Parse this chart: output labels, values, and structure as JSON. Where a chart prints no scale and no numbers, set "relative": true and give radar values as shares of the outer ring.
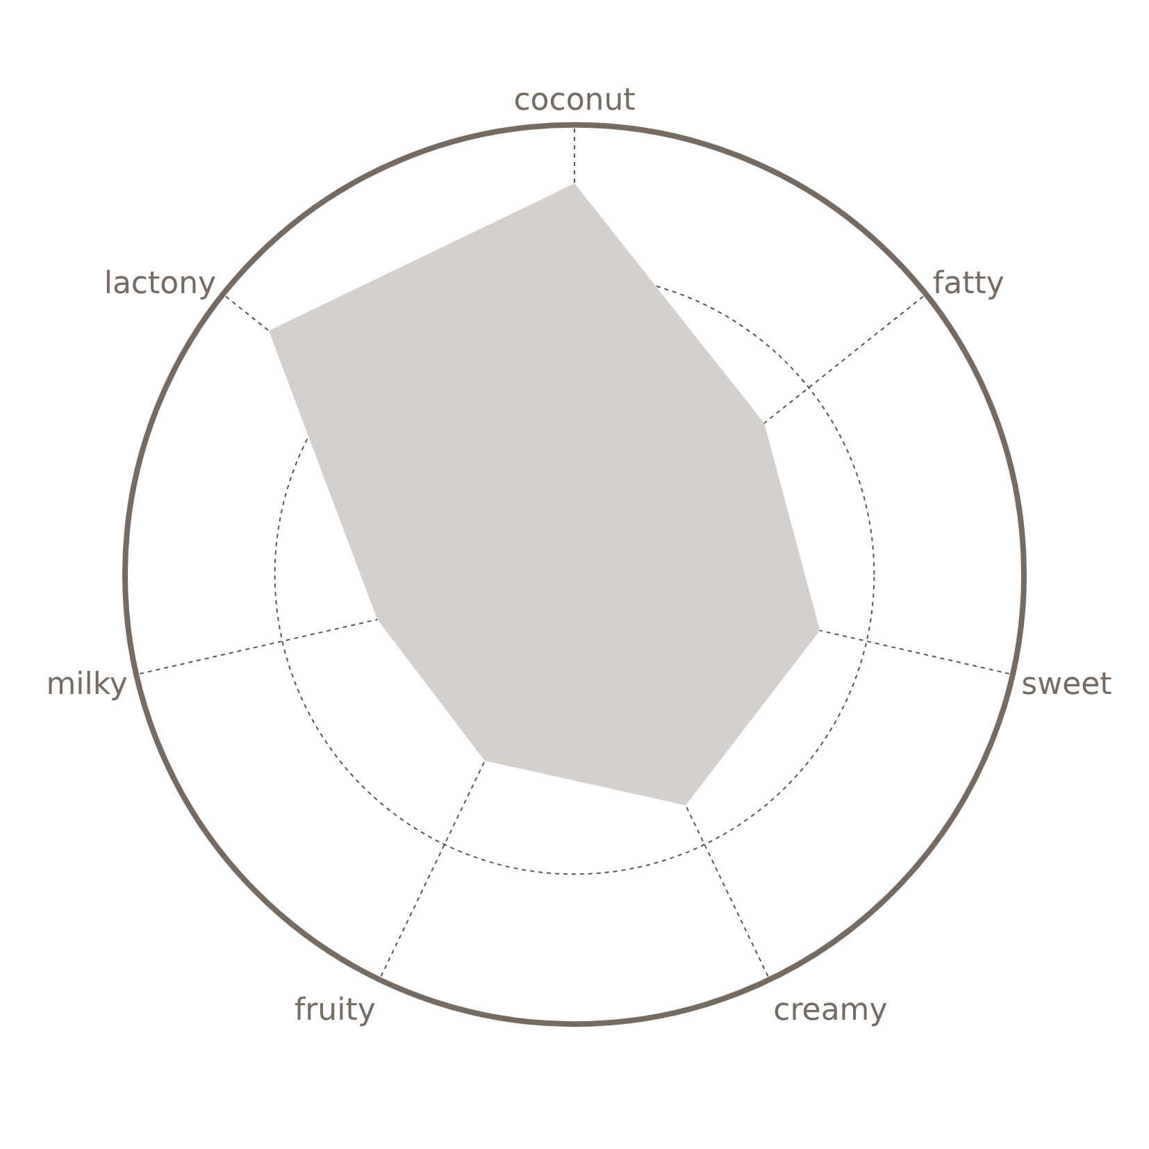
{
  "chart_data": {
    "type": "radar",
    "relative": true,
    "grid": true,
    "categories": [
      "coconut",
      "fatty",
      "sweet",
      "creamy",
      "fruity",
      "milky",
      "lactony"
    ],
    "series": [
      {
        "color": "#d3d0ce",
        "values": [
          0.87,
          0.54,
          0.56,
          0.57,
          0.46,
          0.45,
          0.87
        ]
      }
    ]
  }
}
